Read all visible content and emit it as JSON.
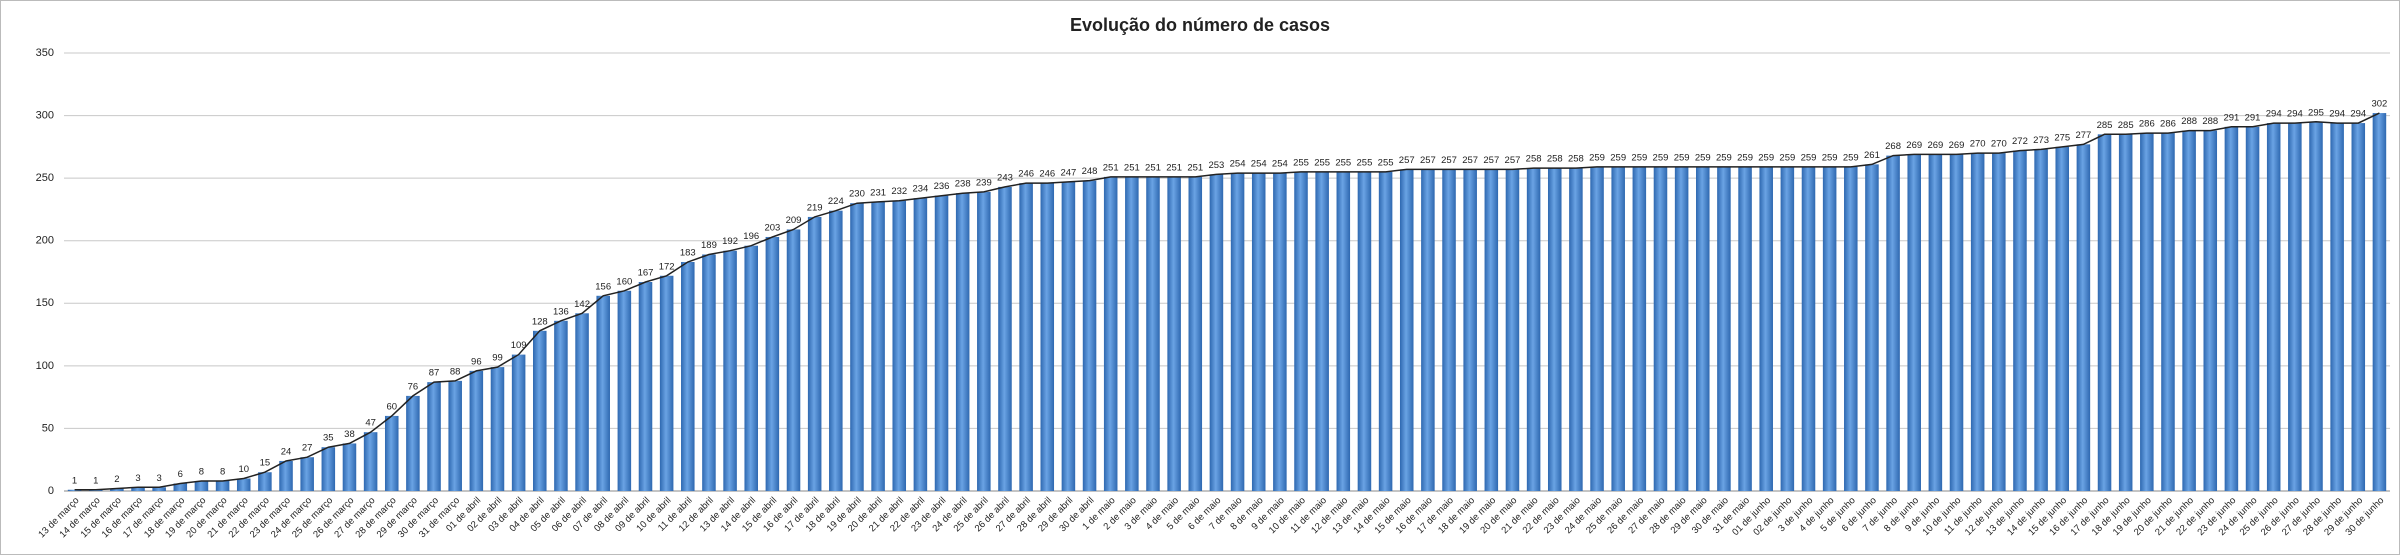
{
  "chart_data": {
    "type": "bar",
    "title": "Evolução do número de casos",
    "categories": [
      "13 de março",
      "14 de março",
      "15 de março",
      "16 de março",
      "17 de março",
      "18 de março",
      "19 de março",
      "20 de março",
      "21 de março",
      "22 de março",
      "23 de março",
      "24 de março",
      "25 de março",
      "26 de março",
      "27 de março",
      "28 de março",
      "29 de março",
      "30 de março",
      "31 de março",
      "01 de abril",
      "02 de abril",
      "03 de abril",
      "04 de abril",
      "05 de abril",
      "06 de abril",
      "07 de abril",
      "08 de abril",
      "09 de abril",
      "10 de abril",
      "11 de abril",
      "12 de abril",
      "13 de abril",
      "14 de abril",
      "15 de abril",
      "16 de abril",
      "17 de abril",
      "18 de abril",
      "19 de abril",
      "20 de abril",
      "21 de abril",
      "22 de abril",
      "23 de abril",
      "24 de abril",
      "25 de abril",
      "26 de abril",
      "27 de abril",
      "28 de abril",
      "29 de abril",
      "30 de abril",
      "1 de maio",
      "2 de maio",
      "3 de maio",
      "4 de maio",
      "5 de maio",
      "6 de maio",
      "7 de maio",
      "8 de maio",
      "9 de maio",
      "10 de maio",
      "11 de maio",
      "12 de maio",
      "13 de maio",
      "14 de maio",
      "15 de maio",
      "16 de maio",
      "17 de maio",
      "18 de maio",
      "19 de maio",
      "20 de maio",
      "21 de maio",
      "22 de maio",
      "23 de maio",
      "24 de maio",
      "25 de maio",
      "26 de maio",
      "27 de maio",
      "28 de maio",
      "29 de maio",
      "30 de maio",
      "31 de maio",
      "01 de junho",
      "02 de junho",
      "3 de junho",
      "4 de junho",
      "5 de junho",
      "6 de junho",
      "7 de junho",
      "8 de junho",
      "9 de junho",
      "10 de junho",
      "11 de junho",
      "12 de junho",
      "13 de junho",
      "14 de junho",
      "15 de junho",
      "16 de junho",
      "17 de junho",
      "18 de junho",
      "19 de junho",
      "20 de junho",
      "21 de junho",
      "22 de junho",
      "23 de junho",
      "24 de junho",
      "25 de junho",
      "26 de junho",
      "27 de junho",
      "28 de junho",
      "29 de junho",
      "30 de junho"
    ],
    "values": [
      1,
      1,
      2,
      3,
      3,
      6,
      8,
      8,
      10,
      15,
      24,
      27,
      35,
      38,
      47,
      60,
      76,
      87,
      88,
      96,
      99,
      109,
      128,
      136,
      142,
      156,
      160,
      167,
      172,
      183,
      189,
      192,
      196,
      203,
      209,
      219,
      224,
      230,
      231,
      232,
      234,
      236,
      238,
      239,
      243,
      246,
      246,
      247,
      248,
      251,
      251,
      251,
      251,
      251,
      253,
      254,
      254,
      254,
      255,
      255,
      255,
      255,
      255,
      257,
      257,
      257,
      257,
      257,
      257,
      258,
      258,
      258,
      259,
      259,
      259,
      259,
      259,
      259,
      259,
      259,
      259,
      259,
      259,
      259,
      259,
      261,
      268,
      269,
      269,
      269,
      270,
      270,
      272,
      273,
      275,
      277,
      285,
      285,
      286,
      286,
      288,
      288,
      291,
      291,
      294,
      294,
      295,
      294,
      294,
      302
    ],
    "color": "#3f7fc8",
    "line_color": "#222222",
    "ylim": [
      0,
      350
    ],
    "yticks": [
      0,
      50,
      100,
      150,
      200,
      250,
      300,
      350
    ],
    "grid": true
  }
}
